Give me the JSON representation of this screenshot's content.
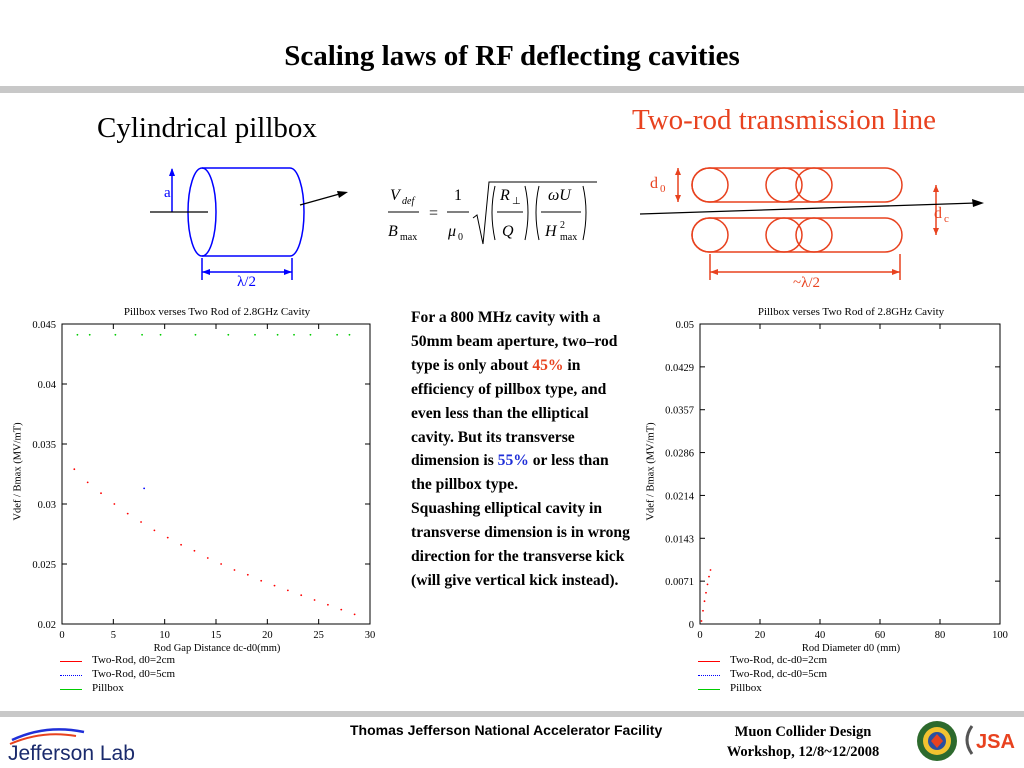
{
  "slide": {
    "title": "Scaling laws of RF deflecting cavities",
    "left_heading": "Cylindrical pillbox",
    "right_heading": "Two-rod transmission line"
  },
  "pillbox_diagram": {
    "label_a": "a",
    "label_half_lambda": "λ/2"
  },
  "tworod_diagram": {
    "label_d0": "d",
    "label_d0_sub": "0",
    "label_dc": "d",
    "label_dc_sub": "c",
    "label_approx_half_lambda": "~λ/2"
  },
  "formula": {
    "lhs_num": "V",
    "lhs_num_sub": "def",
    "lhs_den": "B",
    "lhs_den_sub": "max",
    "eq": "=",
    "frac_num": "1",
    "frac_den": "μ",
    "frac_den_sub": "0",
    "r_num": "R",
    "r_num_sub": "⊥",
    "r_den": "Q",
    "w_num": "ωU",
    "w_den": "H",
    "w_den_sup": "2",
    "w_den_sub": "max"
  },
  "body_text": {
    "p1_a": "For a 800 MHz cavity with a 50mm beam aperture, two–rod type is only about ",
    "p1_pct1": "45%",
    "p1_b": " in efficiency of pillbox type, and even less than the elliptical cavity. But its transverse dimension is ",
    "p1_pct2": "55%",
    "p1_c": " or less than the pillbox type.",
    "p2": "Squashing elliptical cavity in transverse dimension is in wrong direction for the transverse kick (will give vertical kick instead)."
  },
  "footer": {
    "center": "Thomas Jefferson National Accelerator Facility",
    "right_line1": "Muon Collider Design",
    "right_line2": "Workshop, 12/8~12/2008",
    "logo_text": "Jefferson Lab",
    "jsa_text": "JSA"
  },
  "colors": {
    "accent_red": "#e8421f",
    "accent_blue": "#1f2fd8",
    "series_red": "#ff0000",
    "series_blue": "#0000ff",
    "series_green": "#00cc00",
    "rule_gray": "#c8c8c8"
  },
  "chart_data": [
    {
      "type": "scatter",
      "title": "Pillbox verses Two Rod of 2.8GHz Cavity",
      "xlabel": "Rod Gap Distance dc-d0(mm)",
      "ylabel": "Vdef / Bmax (MV/mT)",
      "xlim": [
        0,
        30
      ],
      "ylim": [
        0.02,
        0.045
      ],
      "xticks": [
        "0",
        "5",
        "10",
        "15",
        "20",
        "25",
        "30"
      ],
      "yticks": [
        "0.02",
        "0.025",
        "0.03",
        "0.035",
        "0.04",
        "0.045"
      ],
      "series": [
        {
          "name": "Two-Rod, d0=2cm",
          "color": "#ff0000",
          "x": [
            1.2,
            2.5,
            3.8,
            5.1,
            6.4,
            7.7,
            9.0,
            10.3,
            11.6,
            12.9,
            14.2,
            15.5,
            16.8,
            18.1,
            19.4,
            20.7,
            22.0,
            23.3,
            24.6,
            25.9,
            27.2,
            28.5
          ],
          "y": [
            0.0329,
            0.0318,
            0.0309,
            0.03,
            0.0292,
            0.0285,
            0.0278,
            0.0272,
            0.0266,
            0.0261,
            0.0255,
            0.025,
            0.0245,
            0.0241,
            0.0236,
            0.0232,
            0.0228,
            0.0224,
            0.022,
            0.0216,
            0.0212,
            0.0208
          ]
        },
        {
          "name": "Two-Rod, d0=5cm",
          "color": "#0000ff",
          "x": [
            8.0
          ],
          "y": [
            0.0313
          ]
        },
        {
          "name": "Pillbox",
          "color": "#00cc00",
          "x": [
            1.5,
            2.7,
            5.2,
            7.8,
            9.6,
            13.0,
            16.2,
            18.8,
            21.0,
            22.6,
            24.2,
            26.8,
            28.0
          ],
          "y": [
            0.0441,
            0.0441,
            0.0441,
            0.0441,
            0.0441,
            0.0441,
            0.0441,
            0.0441,
            0.0441,
            0.0441,
            0.0441,
            0.0441,
            0.0441
          ]
        }
      ],
      "grid": false,
      "legend": "bottom-left"
    },
    {
      "type": "scatter",
      "title": "Pillbox verses Two Rod of 2.8GHz Cavity",
      "xlabel": "Rod Diameter d0 (mm)",
      "ylabel": "Vdef / Bmax (MV/mT)",
      "xlim": [
        0,
        100
      ],
      "ylim": [
        0,
        0.05
      ],
      "xticks": [
        "0",
        "20",
        "40",
        "60",
        "80",
        "100"
      ],
      "yticks": [
        "0",
        "0.0071",
        "0.0143",
        "0.0214",
        "0.0286",
        "0.0357",
        "0.0429",
        "0.05"
      ],
      "series": [
        {
          "name": "Two-Rod, dc-d0=2cm",
          "color": "#ff0000",
          "x": [
            0.5,
            1.0,
            1.5,
            2.0,
            2.5,
            3.0,
            3.5
          ],
          "y": [
            0.0005,
            0.0022,
            0.0038,
            0.0052,
            0.0066,
            0.0079,
            0.009
          ]
        },
        {
          "name": "Two-Rod, dc-d0=5cm",
          "color": "#0000ff",
          "x": [],
          "y": []
        },
        {
          "name": "Pillbox",
          "color": "#00cc00",
          "x": [],
          "y": []
        }
      ],
      "grid": false,
      "legend": "bottom-left"
    }
  ]
}
